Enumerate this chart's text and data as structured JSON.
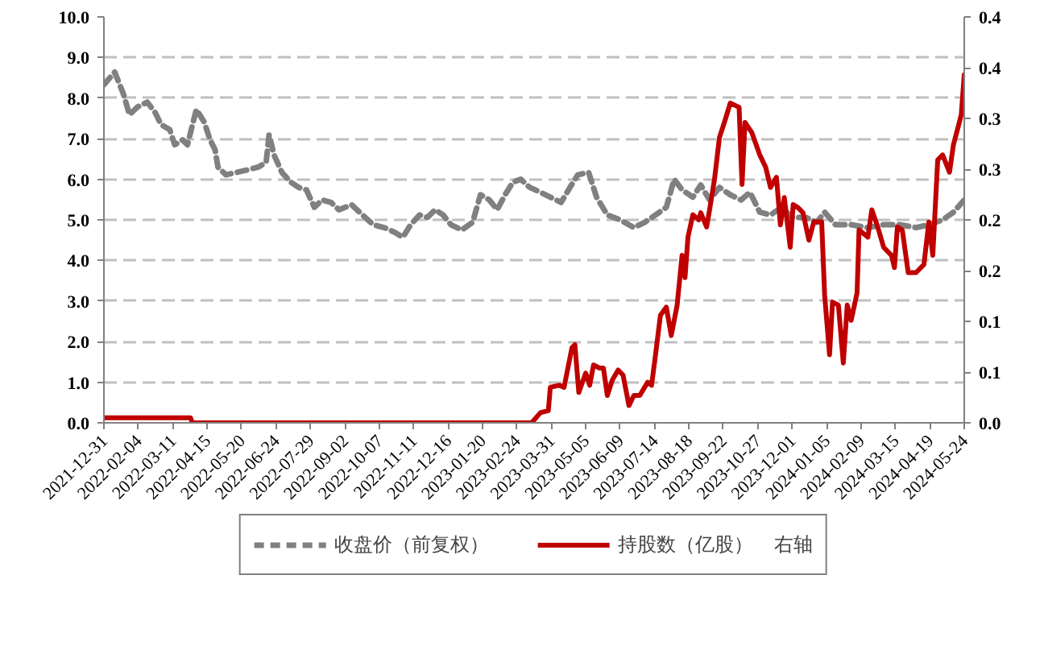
{
  "chart_data": {
    "type": "line",
    "xlim": [
      "2021-12-31",
      "2024-05-24"
    ],
    "xticks": [
      "2021-12-31",
      "2022-02-04",
      "2022-03-11",
      "2022-04-15",
      "2022-05-20",
      "2022-06-24",
      "2022-07-29",
      "2022-09-02",
      "2022-10-07",
      "2022-11-11",
      "2022-12-16",
      "2023-01-20",
      "2023-02-24",
      "2023-03-31",
      "2023-05-05",
      "2023-06-09",
      "2023-07-14",
      "2023-08-18",
      "2023-09-22",
      "2023-10-27",
      "2023-12-01",
      "2024-01-05",
      "2024-02-09",
      "2024-03-15",
      "2024-04-19",
      "2024-05-24"
    ],
    "ylim": [
      0,
      10
    ],
    "yticks": [
      {
        "value": 0,
        "label": "0.0"
      },
      {
        "value": 1,
        "label": "1.0"
      },
      {
        "value": 2,
        "label": "2.0"
      },
      {
        "value": 3,
        "label": "3.0"
      },
      {
        "value": 4,
        "label": "4.0"
      },
      {
        "value": 5,
        "label": "5.0"
      },
      {
        "value": 6,
        "label": "6.0"
      },
      {
        "value": 7,
        "label": "7.0"
      },
      {
        "value": 8,
        "label": "8.0"
      },
      {
        "value": 9,
        "label": "9.0"
      },
      {
        "value": 10,
        "label": "10.0"
      }
    ],
    "y2lim": [
      0,
      0.4
    ],
    "y2ticks": [
      {
        "value": 0,
        "label": "0.0"
      },
      {
        "value": 0.05,
        "label": "0.1"
      },
      {
        "value": 0.1,
        "label": "0.1"
      },
      {
        "value": 0.15,
        "label": "0.2"
      },
      {
        "value": 0.2,
        "label": "0.2"
      },
      {
        "value": 0.25,
        "label": "0.3"
      },
      {
        "value": 0.3,
        "label": "0.3"
      },
      {
        "value": 0.35,
        "label": "0.4"
      },
      {
        "value": 0.4,
        "label": "0.4"
      }
    ],
    "grid": "y",
    "legend": "bottom",
    "marker": "none",
    "series": [
      {
        "name": "收盘价（前复权）",
        "color": "#808080",
        "line_style": "dashed",
        "x": [
          "2021-12-31",
          "2022-01-11",
          "2022-01-20",
          "2022-01-26",
          "2022-02-03",
          "2022-02-13",
          "2022-02-21",
          "2022-02-27",
          "2022-03-08",
          "2022-03-13",
          "2022-03-21",
          "2022-03-26",
          "2022-04-04",
          "2022-04-12",
          "2022-04-18",
          "2022-04-23",
          "2022-04-26",
          "2022-05-04",
          "2022-05-15",
          "2022-05-26",
          "2022-06-06",
          "2022-06-14",
          "2022-06-17",
          "2022-06-22",
          "2022-06-30",
          "2022-07-09",
          "2022-07-17",
          "2022-07-25",
          "2022-08-02",
          "2022-08-10",
          "2022-08-19",
          "2022-08-27",
          "2022-09-09",
          "2022-09-20",
          "2022-10-01",
          "2022-10-12",
          "2022-10-23",
          "2022-10-31",
          "2022-11-08",
          "2022-11-17",
          "2022-11-25",
          "2022-12-03",
          "2022-12-11",
          "2022-12-19",
          "2022-12-30",
          "2023-01-10",
          "2023-01-18",
          "2023-01-27",
          "2023-02-04",
          "2023-02-12",
          "2023-02-20",
          "2023-02-28",
          "2023-03-09",
          "2023-03-20",
          "2023-03-30",
          "2023-04-10",
          "2023-04-19",
          "2023-04-27",
          "2023-05-08",
          "2023-05-16",
          "2023-05-27",
          "2023-06-09",
          "2023-06-23",
          "2023-07-04",
          "2023-07-15",
          "2023-07-26",
          "2023-08-03",
          "2023-08-11",
          "2023-08-22",
          "2023-08-30",
          "2023-09-08",
          "2023-09-18",
          "2023-09-29",
          "2023-10-10",
          "2023-10-19",
          "2023-10-29",
          "2023-11-09",
          "2023-11-20",
          "2023-12-01",
          "2023-12-15",
          "2023-12-26",
          "2024-01-03",
          "2024-01-14",
          "2024-01-30",
          "2024-02-16",
          "2024-03-03",
          "2024-03-19",
          "2024-04-05",
          "2024-04-18",
          "2024-05-02",
          "2024-05-13",
          "2024-05-24"
        ],
        "values": [
          8.33,
          8.64,
          8.09,
          7.59,
          7.78,
          7.9,
          7.65,
          7.35,
          7.22,
          6.85,
          6.97,
          6.85,
          7.72,
          7.41,
          6.97,
          6.73,
          6.3,
          6.11,
          6.17,
          6.23,
          6.3,
          6.42,
          7.1,
          6.6,
          6.17,
          5.93,
          5.8,
          5.74,
          5.31,
          5.49,
          5.43,
          5.25,
          5.37,
          5.12,
          4.88,
          4.81,
          4.69,
          4.57,
          4.88,
          5.12,
          5.06,
          5.25,
          5.12,
          4.88,
          4.75,
          4.94,
          5.62,
          5.49,
          5.25,
          5.62,
          5.93,
          6.0,
          5.8,
          5.68,
          5.56,
          5.43,
          5.8,
          6.11,
          6.17,
          5.56,
          5.12,
          5.0,
          4.81,
          4.94,
          5.12,
          5.31,
          6.0,
          5.74,
          5.56,
          5.86,
          5.49,
          5.8,
          5.62,
          5.49,
          5.68,
          5.19,
          5.12,
          5.31,
          5.06,
          5.06,
          4.94,
          5.19,
          4.88,
          4.88,
          4.81,
          4.88,
          4.88,
          4.81,
          4.88,
          5.0,
          5.19,
          5.49
        ]
      },
      {
        "name": "持股数（亿股）    右轴",
        "color": "#c00000",
        "line_style": "solid",
        "axis": "y2",
        "x": [
          "2021-12-31",
          "2022-03-29",
          "2022-03-31",
          "2023-03-11",
          "2023-03-20",
          "2023-03-28",
          "2023-03-30",
          "2023-04-08",
          "2023-04-13",
          "2023-04-21",
          "2023-04-24",
          "2023-04-28",
          "2023-05-05",
          "2023-05-09",
          "2023-05-13",
          "2023-05-19",
          "2023-05-23",
          "2023-05-27",
          "2023-06-01",
          "2023-06-07",
          "2023-06-12",
          "2023-06-18",
          "2023-06-23",
          "2023-06-29",
          "2023-07-07",
          "2023-07-11",
          "2023-07-15",
          "2023-07-20",
          "2023-07-26",
          "2023-07-31",
          "2023-08-06",
          "2023-08-11",
          "2023-08-14",
          "2023-08-17",
          "2023-08-22",
          "2023-08-28",
          "2023-08-30",
          "2023-09-05",
          "2023-09-08",
          "2023-09-13",
          "2023-09-18",
          "2023-09-24",
          "2023-09-29",
          "2023-10-08",
          "2023-10-11",
          "2023-10-14",
          "2023-10-21",
          "2023-10-29",
          "2023-11-04",
          "2023-11-09",
          "2023-11-15",
          "2023-11-19",
          "2023-11-23",
          "2023-11-29",
          "2023-12-02",
          "2023-12-07",
          "2023-12-12",
          "2023-12-18",
          "2023-12-23",
          "2023-12-31",
          "2024-01-03",
          "2024-01-08",
          "2024-01-11",
          "2024-01-17",
          "2024-01-22",
          "2024-01-26",
          "2024-01-30",
          "2024-02-05",
          "2024-02-07",
          "2024-02-16",
          "2024-02-20",
          "2024-02-26",
          "2024-03-03",
          "2024-03-11",
          "2024-03-14",
          "2024-03-17",
          "2024-03-22",
          "2024-03-28",
          "2024-04-05",
          "2024-04-13",
          "2024-04-18",
          "2024-04-22",
          "2024-04-27",
          "2024-05-02",
          "2024-05-09",
          "2024-05-13",
          "2024-05-19",
          "2024-05-21",
          "2024-05-24"
        ],
        "values": [
          0.005,
          0.005,
          0.0,
          0.0,
          0.01,
          0.012,
          0.035,
          0.037,
          0.035,
          0.074,
          0.077,
          0.03,
          0.049,
          0.037,
          0.057,
          0.054,
          0.054,
          0.027,
          0.042,
          0.052,
          0.047,
          0.017,
          0.027,
          0.027,
          0.04,
          0.037,
          0.067,
          0.106,
          0.114,
          0.086,
          0.116,
          0.165,
          0.143,
          0.183,
          0.205,
          0.2,
          0.207,
          0.193,
          0.21,
          0.24,
          0.281,
          0.299,
          0.315,
          0.311,
          0.235,
          0.296,
          0.286,
          0.264,
          0.252,
          0.232,
          0.242,
          0.195,
          0.222,
          0.173,
          0.215,
          0.212,
          0.207,
          0.18,
          0.198,
          0.198,
          0.126,
          0.067,
          0.119,
          0.116,
          0.059,
          0.116,
          0.101,
          0.128,
          0.19,
          0.183,
          0.21,
          0.193,
          0.173,
          0.165,
          0.153,
          0.193,
          0.19,
          0.148,
          0.148,
          0.156,
          0.198,
          0.165,
          0.259,
          0.264,
          0.247,
          0.274,
          0.296,
          0.304,
          0.343
        ]
      }
    ]
  }
}
